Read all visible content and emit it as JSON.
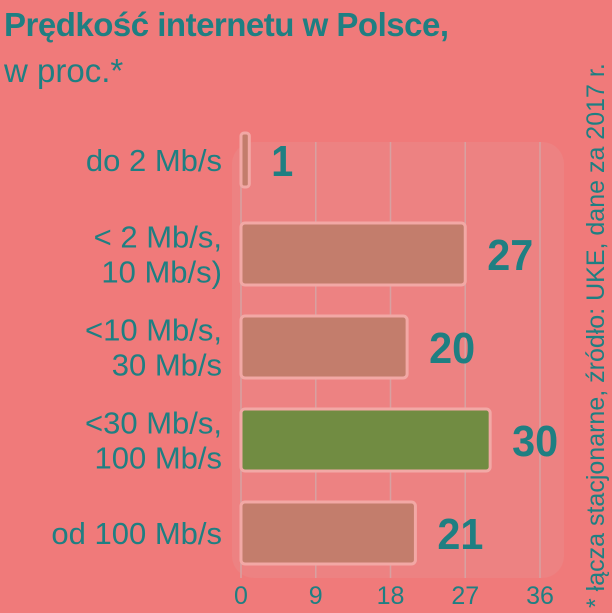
{
  "header": {
    "title": "Prędkość internetu w Polsce,",
    "subtitle": "w proc.*"
  },
  "footnote": "* łącza stacjonarne, źródło: UKE, dane za 2017 r.",
  "colors": {
    "background": "#f07a7a",
    "text": "#1f7f82",
    "bar": "#c37d6c",
    "bar_border": "#f2a8a5",
    "highlight_bar": "#718c42",
    "plot_background": "#ed8282",
    "grid": "#d7a1a1"
  },
  "chart_data": {
    "type": "bar",
    "orientation": "horizontal",
    "categories": [
      [
        "do 2 Mb/s"
      ],
      [
        "< 2 Mb/s,",
        "10 Mb/s)"
      ],
      [
        "<10 Mb/s,",
        "30 Mb/s"
      ],
      [
        "<30 Mb/s,",
        "100 Mb/s"
      ],
      [
        "od 100 Mb/s"
      ]
    ],
    "values": [
      1,
      27,
      20,
      30,
      21
    ],
    "highlight_index": 3,
    "xlim": [
      0,
      36
    ],
    "xticks": [
      0,
      9,
      18,
      27,
      36
    ],
    "grid": true
  }
}
